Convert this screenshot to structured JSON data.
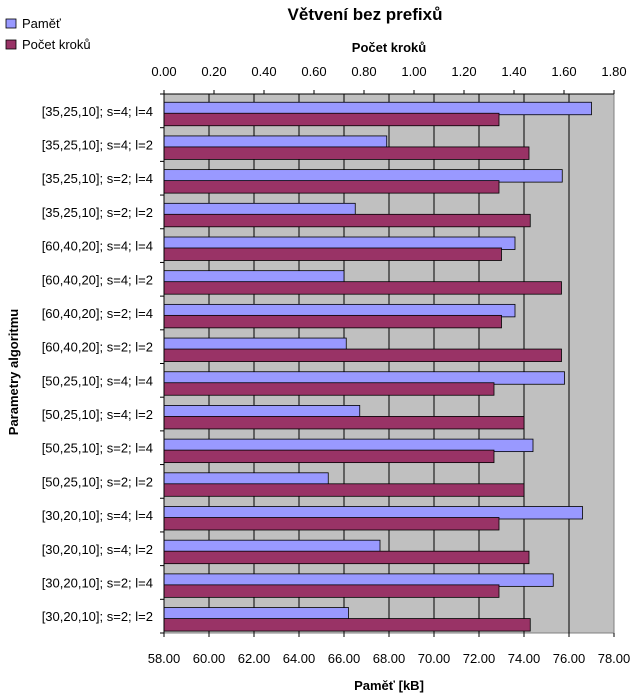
{
  "chart_data": {
    "type": "bar",
    "orientation": "horizontal",
    "title": "Větvení bez prefixů",
    "ylabel": "Parametry algoritmu",
    "bottom_axis": {
      "label": "Paměť  [kB]",
      "range": [
        58,
        78
      ],
      "step": 2,
      "ticks": [
        "58.00",
        "60.00",
        "62.00",
        "64.00",
        "66.00",
        "68.00",
        "70.00",
        "72.00",
        "74.00",
        "76.00",
        "78.00"
      ]
    },
    "top_axis": {
      "label": "Počet kroků",
      "range": [
        0,
        1.8
      ],
      "step": 0.2,
      "ticks": [
        "0.00",
        "0.20",
        "0.40",
        "0.60",
        "0.80",
        "1.00",
        "1.20",
        "1.40",
        "1.60",
        "1.80"
      ]
    },
    "categories": [
      "[35,25,10]; s=4; l=4",
      "[35,25,10]; s=4; l=2",
      "[35,25,10]; s=2; l=4",
      "[35,25,10]; s=2; l=2",
      "[60,40,20]; s=4; l=4",
      "[60,40,20]; s=4; l=2",
      "[60,40,20]; s=2; l=4",
      "[60,40,20]; s=2; l=2",
      "[50,25,10]; s=4; l=4",
      "[50,25,10]; s=4; l=2",
      "[50,25,10]; s=2; l=4",
      "[50,25,10]; s=2; l=2",
      "[30,20,10]; s=4; l=4",
      "[30,20,10]; s=4; l=2",
      "[30,20,10]; s=2; l=4",
      "[30,20,10]; s=2; l=2"
    ],
    "series": [
      {
        "name": "Paměť",
        "axis": "bottom",
        "color": "#9999FF",
        "values": [
          77.0,
          67.9,
          75.7,
          66.5,
          73.6,
          66.0,
          73.6,
          66.1,
          75.8,
          66.7,
          74.4,
          65.3,
          76.6,
          67.6,
          75.3,
          66.2
        ]
      },
      {
        "name": "Počet kroků",
        "axis": "top",
        "color": "#993366",
        "values": [
          1.34,
          1.46,
          1.34,
          1.465,
          1.35,
          1.59,
          1.35,
          1.59,
          1.32,
          1.44,
          1.32,
          1.44,
          1.34,
          1.46,
          1.34,
          1.465
        ]
      }
    ],
    "legend_position": "top-left",
    "grid": true,
    "plot_background": "#C0C0C0"
  }
}
